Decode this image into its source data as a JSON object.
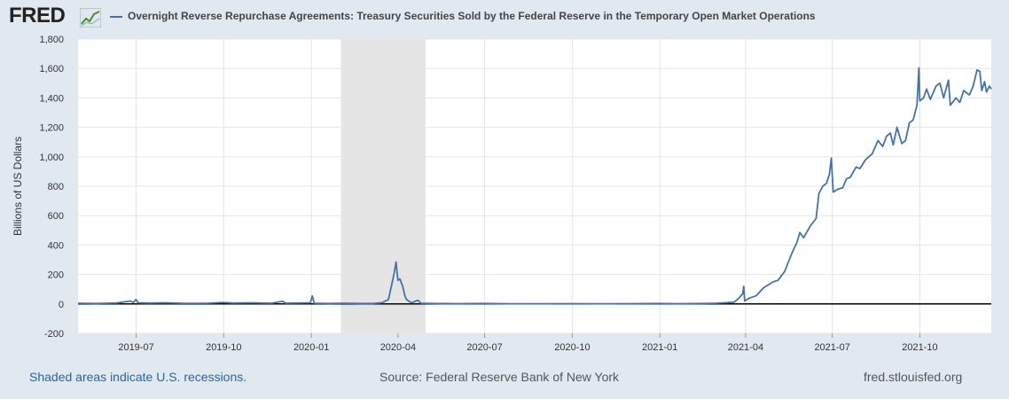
{
  "header": {
    "logo": "FRED",
    "logo_icon": "line-graph-icon"
  },
  "footer": {
    "recession_note": "Shaded areas indicate U.S. recessions.",
    "source": "Source: Federal Reserve Bank of New York",
    "site": "fred.stlouisfed.org"
  },
  "colors": {
    "background": "#e1e9f0",
    "plot_background": "#ffffff",
    "series": "#4572a7",
    "recession_band": "#e5e5e5",
    "grid": "#e5e5e5",
    "zero_line": "#000000",
    "link": "#2a65a0"
  },
  "chart_data": {
    "type": "line",
    "title": "Overnight Reverse Repurchase Agreements: Treasury Securities Sold by the Federal Reserve in the Temporary Open Market Operations",
    "xlabel": "",
    "ylabel": "Billions of US Dollars",
    "ylim": [
      -200,
      1800
    ],
    "yticks": [
      -200,
      0,
      200,
      400,
      600,
      800,
      1000,
      1200,
      1400,
      1600,
      1800
    ],
    "ytick_labels": [
      "-200",
      "0",
      "200",
      "400",
      "600",
      "800",
      "1,000",
      "1,200",
      "1,400",
      "1,600",
      "1,800"
    ],
    "xlim": [
      "2019-05-01",
      "2021-12-15"
    ],
    "xticks": [
      "2019-07-01",
      "2019-10-01",
      "2020-01-01",
      "2020-04-01",
      "2020-07-01",
      "2020-10-01",
      "2021-01-01",
      "2021-04-01",
      "2021-07-01",
      "2021-10-01"
    ],
    "xtick_labels": [
      "2019-07",
      "2019-10",
      "2020-01",
      "2020-04",
      "2020-07",
      "2020-10",
      "2021-01",
      "2021-04",
      "2021-07",
      "2021-10"
    ],
    "recessions": [
      [
        "2020-02-01",
        "2020-04-30"
      ]
    ],
    "grid": true,
    "legend": "top-left",
    "series": [
      {
        "name": "Overnight Reverse Repurchase Agreements: Treasury Securities Sold by the Federal Reserve in the Temporary Open Market Operations",
        "points": [
          [
            "2019-05-01",
            5
          ],
          [
            "2019-05-20",
            3
          ],
          [
            "2019-06-10",
            6
          ],
          [
            "2019-06-25",
            20
          ],
          [
            "2019-06-28",
            10
          ],
          [
            "2019-07-01",
            30
          ],
          [
            "2019-07-03",
            8
          ],
          [
            "2019-07-15",
            6
          ],
          [
            "2019-08-01",
            8
          ],
          [
            "2019-08-20",
            4
          ],
          [
            "2019-09-15",
            5
          ],
          [
            "2019-09-30",
            10
          ],
          [
            "2019-10-10",
            6
          ],
          [
            "2019-10-31",
            8
          ],
          [
            "2019-11-20",
            5
          ],
          [
            "2019-12-02",
            18
          ],
          [
            "2019-12-05",
            5
          ],
          [
            "2019-12-31",
            8
          ],
          [
            "2020-01-02",
            55
          ],
          [
            "2020-01-04",
            5
          ],
          [
            "2020-01-20",
            3
          ],
          [
            "2020-02-05",
            5
          ],
          [
            "2020-02-20",
            3
          ],
          [
            "2020-03-05",
            3
          ],
          [
            "2020-03-15",
            8
          ],
          [
            "2020-03-22",
            30
          ],
          [
            "2020-03-25",
            120
          ],
          [
            "2020-03-28",
            210
          ],
          [
            "2020-03-30",
            285
          ],
          [
            "2020-03-31",
            215
          ],
          [
            "2020-04-01",
            160
          ],
          [
            "2020-04-03",
            170
          ],
          [
            "2020-04-06",
            120
          ],
          [
            "2020-04-08",
            60
          ],
          [
            "2020-04-10",
            30
          ],
          [
            "2020-04-15",
            8
          ],
          [
            "2020-04-22",
            25
          ],
          [
            "2020-04-25",
            5
          ],
          [
            "2020-05-10",
            3
          ],
          [
            "2020-06-01",
            2
          ],
          [
            "2020-06-30",
            3
          ],
          [
            "2020-08-01",
            1
          ],
          [
            "2020-09-01",
            1
          ],
          [
            "2020-10-01",
            2
          ],
          [
            "2020-11-01",
            1
          ],
          [
            "2020-12-01",
            2
          ],
          [
            "2020-12-31",
            3
          ],
          [
            "2021-01-20",
            2
          ],
          [
            "2021-02-15",
            3
          ],
          [
            "2021-03-01",
            5
          ],
          [
            "2021-03-10",
            8
          ],
          [
            "2021-03-20",
            12
          ],
          [
            "2021-03-25",
            40
          ],
          [
            "2021-03-29",
            70
          ],
          [
            "2021-03-30",
            120
          ],
          [
            "2021-03-31",
            20
          ],
          [
            "2021-04-05",
            40
          ],
          [
            "2021-04-12",
            55
          ],
          [
            "2021-04-20",
            110
          ],
          [
            "2021-04-30",
            150
          ],
          [
            "2021-05-05",
            160
          ],
          [
            "2021-05-12",
            220
          ],
          [
            "2021-05-20",
            350
          ],
          [
            "2021-05-25",
            420
          ],
          [
            "2021-05-28",
            485
          ],
          [
            "2021-06-01",
            450
          ],
          [
            "2021-06-08",
            530
          ],
          [
            "2021-06-14",
            580
          ],
          [
            "2021-06-17",
            750
          ],
          [
            "2021-06-21",
            800
          ],
          [
            "2021-06-25",
            820
          ],
          [
            "2021-06-28",
            880
          ],
          [
            "2021-06-30",
            991
          ],
          [
            "2021-07-02",
            760
          ],
          [
            "2021-07-07",
            780
          ],
          [
            "2021-07-12",
            790
          ],
          [
            "2021-07-16",
            850
          ],
          [
            "2021-07-20",
            860
          ],
          [
            "2021-07-26",
            930
          ],
          [
            "2021-07-30",
            920
          ],
          [
            "2021-08-05",
            980
          ],
          [
            "2021-08-12",
            1020
          ],
          [
            "2021-08-18",
            1110
          ],
          [
            "2021-08-23",
            1070
          ],
          [
            "2021-08-27",
            1140
          ],
          [
            "2021-08-31",
            1160
          ],
          [
            "2021-09-03",
            1080
          ],
          [
            "2021-09-07",
            1200
          ],
          [
            "2021-09-12",
            1090
          ],
          [
            "2021-09-16",
            1110
          ],
          [
            "2021-09-20",
            1230
          ],
          [
            "2021-09-24",
            1250
          ],
          [
            "2021-09-28",
            1350
          ],
          [
            "2021-09-30",
            1604
          ],
          [
            "2021-10-01",
            1380
          ],
          [
            "2021-10-05",
            1400
          ],
          [
            "2021-10-08",
            1460
          ],
          [
            "2021-10-12",
            1390
          ],
          [
            "2021-10-18",
            1480
          ],
          [
            "2021-10-22",
            1500
          ],
          [
            "2021-10-26",
            1400
          ],
          [
            "2021-10-31",
            1520
          ],
          [
            "2021-11-02",
            1350
          ],
          [
            "2021-11-08",
            1400
          ],
          [
            "2021-11-12",
            1370
          ],
          [
            "2021-11-16",
            1450
          ],
          [
            "2021-11-22",
            1420
          ],
          [
            "2021-11-26",
            1480
          ],
          [
            "2021-11-30",
            1590
          ],
          [
            "2021-12-03",
            1580
          ],
          [
            "2021-12-05",
            1450
          ],
          [
            "2021-12-08",
            1510
          ],
          [
            "2021-12-10",
            1440
          ],
          [
            "2021-12-13",
            1480
          ],
          [
            "2021-12-15",
            1460
          ]
        ]
      }
    ]
  }
}
